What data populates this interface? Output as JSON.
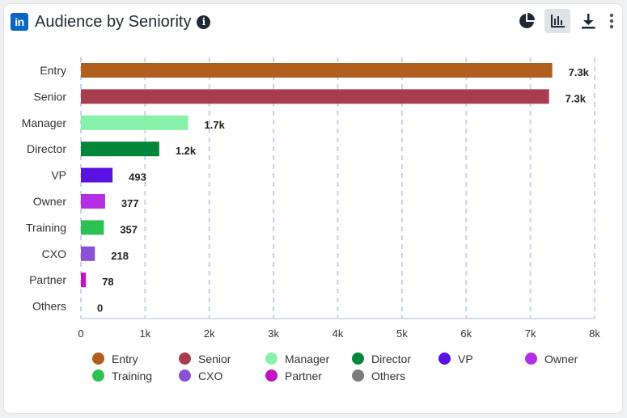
{
  "header": {
    "logo_text": "in",
    "title": "Audience by Seniority",
    "info_glyph": "i"
  },
  "toolbar": {
    "icons": [
      "pie-chart-icon",
      "bar-chart-icon",
      "download-icon",
      "more-vertical-icon"
    ],
    "active": "bar-chart-icon"
  },
  "chart_data": {
    "type": "bar",
    "orientation": "horizontal",
    "categories": [
      "Entry",
      "Senior",
      "Manager",
      "Director",
      "VP",
      "Owner",
      "Training",
      "CXO",
      "Partner",
      "Others"
    ],
    "values": [
      7340,
      7290,
      1670,
      1220,
      493,
      377,
      357,
      218,
      78,
      0
    ],
    "value_labels": [
      "7.3k",
      "7.3k",
      "1.7k",
      "1.2k",
      "493",
      "377",
      "357",
      "218",
      "78",
      "0"
    ],
    "colors": [
      "#b0601c",
      "#a83d4e",
      "#86f2a8",
      "#00873a",
      "#5a12e0",
      "#b42ee6",
      "#2cc253",
      "#8a50d8",
      "#c214c2",
      "#7d7d7d"
    ],
    "xlim": [
      0,
      8000
    ],
    "xticks": [
      0,
      1000,
      2000,
      3000,
      4000,
      5000,
      6000,
      7000,
      8000
    ],
    "xtick_labels": [
      "0",
      "1k",
      "2k",
      "3k",
      "4k",
      "5k",
      "6k",
      "7k",
      "8k"
    ],
    "grid": true,
    "legend_position": "bottom"
  }
}
